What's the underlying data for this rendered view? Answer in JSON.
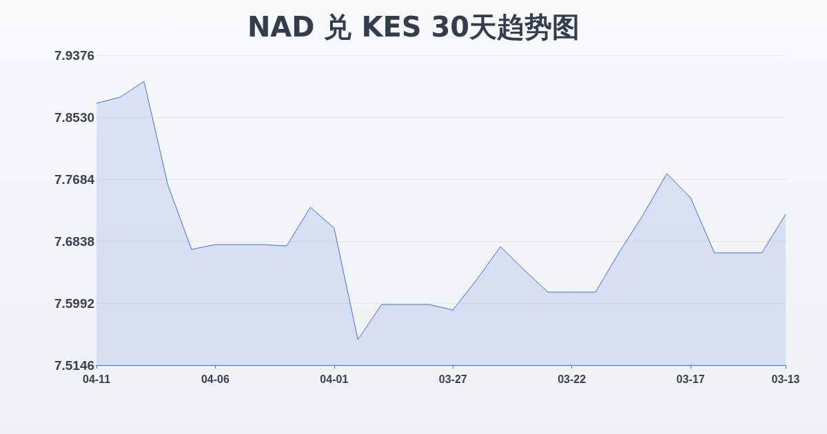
{
  "chart_data": {
    "type": "area",
    "title": "NAD 兑 KES 30天趋势图",
    "categories": [
      "04-11",
      null,
      null,
      null,
      null,
      "04-06",
      null,
      null,
      null,
      null,
      "04-01",
      null,
      null,
      null,
      null,
      "03-27",
      null,
      null,
      null,
      null,
      "03-22",
      null,
      null,
      null,
      null,
      "03-17",
      null,
      null,
      null,
      "03-13"
    ],
    "series": [
      {
        "color": "#3b6fd4",
        "values": [
          7.8718,
          7.8803,
          7.9019,
          7.7609,
          7.6725,
          7.6791,
          7.6791,
          7.6791,
          7.6772,
          7.7299,
          7.7017,
          7.5494,
          7.5973,
          7.5973,
          7.5973,
          7.5898,
          7.6312,
          7.6763,
          7.6443,
          7.6142,
          7.6142,
          7.6142,
          7.6688,
          7.7195,
          7.7759,
          7.743,
          7.6678,
          7.6678,
          7.6678,
          7.7205
        ]
      }
    ],
    "ylim": [
      7.5146,
      7.9376
    ],
    "yticks": [
      7.5146,
      7.5992,
      7.6838,
      7.7684,
      {
        "value": 7.853,
        "label": "7.8530"
      },
      7.9376
    ],
    "grid": "y",
    "marker": "none",
    "line_style": "solid"
  }
}
